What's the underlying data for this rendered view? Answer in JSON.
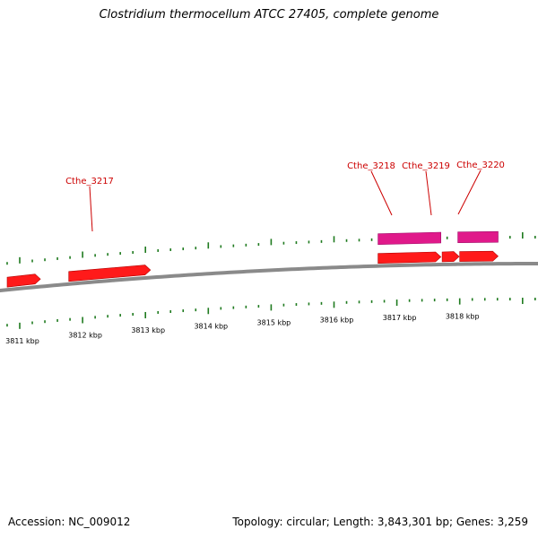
{
  "title": "Clostridium thermocellum ATCC 27405, complete genome",
  "footer": {
    "accession": "Accession: NC_009012",
    "stats": "Topology: circular; Length: 3,843,301 bp; Genes: 3,259"
  },
  "colors": {
    "tick": "#1e7a1e",
    "backbone": "#8a8a8a",
    "forward_gene": "#ff1a1a",
    "feature": "#e0198a",
    "label": "#cc0000"
  },
  "scale": {
    "unit": "kbp",
    "labels": [
      {
        "kbp": 3811,
        "text": "3811 kbp"
      },
      {
        "kbp": 3812,
        "text": "3812 kbp"
      },
      {
        "kbp": 3813,
        "text": "3813 kbp"
      },
      {
        "kbp": 3814,
        "text": "3814 kbp"
      },
      {
        "kbp": 3815,
        "text": "3815 kbp"
      },
      {
        "kbp": 3816,
        "text": "3816 kbp"
      },
      {
        "kbp": 3817,
        "text": "3817 kbp"
      },
      {
        "kbp": 3818,
        "text": "3818 kbp"
      }
    ]
  },
  "genes": [
    {
      "id": "gene-0",
      "label": "",
      "start_kbp": 3810.8,
      "end_kbp": 3811.33,
      "strand": "+"
    },
    {
      "id": "gene-3217",
      "label": "Cthe_3217",
      "start_kbp": 3811.78,
      "end_kbp": 3813.08,
      "strand": "+"
    },
    {
      "id": "gene-3218",
      "label": "Cthe_3218",
      "start_kbp": 3816.7,
      "end_kbp": 3817.7,
      "strand": "+"
    },
    {
      "id": "gene-3219",
      "label": "Cthe_3219",
      "start_kbp": 3817.72,
      "end_kbp": 3817.99,
      "strand": "+"
    },
    {
      "id": "gene-3220",
      "label": "Cthe_3220",
      "start_kbp": 3818.0,
      "end_kbp": 3818.61,
      "strand": "+"
    }
  ],
  "features": [
    {
      "id": "feature-a",
      "start_kbp": 3816.7,
      "end_kbp": 3817.7
    },
    {
      "id": "feature-b",
      "start_kbp": 3817.97,
      "end_kbp": 3818.61
    }
  ]
}
